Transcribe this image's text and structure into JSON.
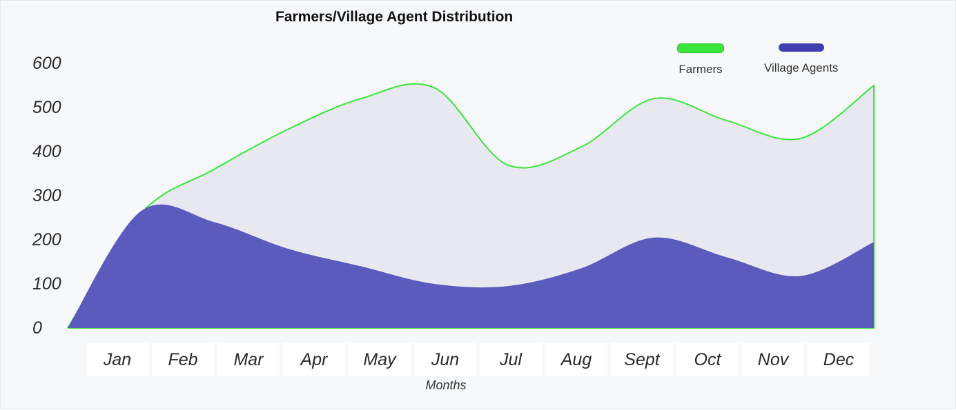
{
  "chart_data": {
    "type": "area",
    "title": "Farmers/Village Agent Distribution",
    "xlabel": "Months",
    "ylabel": "",
    "ylim": [
      0,
      600
    ],
    "yticks": [
      "0",
      "100",
      "200",
      "300",
      "400",
      "500",
      "600"
    ],
    "categories": [
      "Jan",
      "Feb",
      "Mar",
      "Apr",
      "May",
      "Jun",
      "Jul",
      "Aug",
      "Sept",
      "Oct",
      "Nov",
      "Dec"
    ],
    "series": [
      {
        "name": "Farmers",
        "color": "#39e639",
        "values": [
          0,
          260,
          360,
          450,
          520,
          545,
          370,
          410,
          520,
          470,
          430,
          550
        ]
      },
      {
        "name": "Village Agents",
        "color": "#5b5bbd",
        "values": [
          0,
          265,
          240,
          180,
          140,
          100,
          95,
          135,
          205,
          160,
          118,
          195
        ]
      }
    ],
    "grid": false,
    "legend_position": "top-right"
  }
}
